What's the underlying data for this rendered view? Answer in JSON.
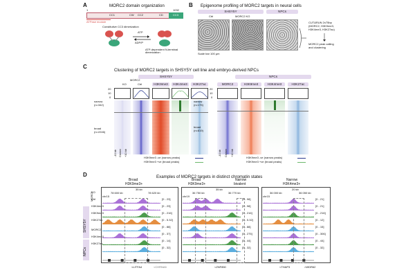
{
  "panels": {
    "A": {
      "letter": "A",
      "title": "MORC2 domain organization",
      "end_pos": "1032",
      "start_pos": "1",
      "domains": [
        "CC1",
        "CW",
        "CC2",
        "CD",
        "CC3"
      ],
      "atpase_label": "ATPase module",
      "constitutive_label": "Constitutive CC3 dimerization",
      "atp_label": "ATP",
      "adp_label": "ADP/P",
      "atp_dependent_label": "ATP-dependent N-terminal dimerization",
      "colors": {
        "atpase": "#d9534f",
        "domain_fill": "#f4e6e6",
        "cc3": "#3aa67a"
      }
    },
    "B": {
      "letter": "B",
      "title": "Epigenome profiling of MORC2 targets in neural cells",
      "group1": "SHSY5Y",
      "group2": "NPCs",
      "sub1": "Ctrl",
      "sub2": "MORC2 KO",
      "scale_bar": "Scale bar 100 μm",
      "cutrun": [
        "CUT&RUN 2x75bp",
        "(MORC2, H3K9me3,",
        "H3K4me3, H3K27ac)"
      ],
      "peak_calling": [
        "MORC2 peak calling",
        "and clustering"
      ]
    },
    "C": {
      "letter": "C",
      "title": "Clustering of MORC2 targets in SHSY5Y cell line and embryo-derived NPCs",
      "left_group": "SHSY5Y",
      "left_morc2": "MORC2",
      "left_cols": [
        "KO",
        "Ctrl",
        "H3K9me3",
        "H3K4me3",
        "H3K27ac"
      ],
      "right_group": "NPCs",
      "right_cols": [
        "MORC2",
        "H3K9me3",
        "H3K4me3",
        "H3K27ac"
      ],
      "left_narrow": [
        "narrow",
        "(n=342)"
      ],
      "left_broad": [
        "broad",
        "(n=2246)"
      ],
      "right_narrow": [
        "narrow",
        "(n=175)"
      ],
      "right_broad": [
        "broad",
        "(n=819)"
      ],
      "y_ticks_a": [
        "20",
        "10",
        "0"
      ],
      "y_ticks_b": [
        "150",
        "100",
        "50",
        "0"
      ],
      "x_ticks": [
        "-10 kb",
        "Center",
        "+10 kb"
      ],
      "legend_narrow": "H3K9me3 -ve (narrow peaks)",
      "legend_broad": "H3K9me3 +ve (broad peaks)",
      "colors": {
        "narrow": "#2b3a8f",
        "broad": "#6bb86b",
        "morc2": "#5b5bc8",
        "h3k9": "#e8643c",
        "h3k4": "#3a8a3a",
        "h3k27": "#3c7fc0"
      }
    },
    "D": {
      "letter": "D",
      "title": "Examples of MORC2 targets in distinct chromatin states",
      "loci": [
        {
          "header": [
            "Broad",
            "H3K9me3+"
          ],
          "chr": "chr15",
          "span": "35 kb",
          "coords": [
            "78 600 kb",
            "78 620 kb"
          ],
          "ranges": [
            "[0 - 23]",
            "[0 - 23]",
            "[0 - 216]",
            "[0 - 5.32]",
            "[0 - 88]",
            "[0 - 37]",
            "[0 - 14]",
            "[0 - 32]"
          ],
          "genes": [
            "<LITFA4",
            "<CHRNA5"
          ]
        },
        {
          "header": [
            "Broad",
            "H3K9me3+"
          ],
          "header2": [
            "Narrow",
            "bivalent"
          ],
          "chr": "chr19",
          "span": "35 kb",
          "coords": [
            "36 750 kb",
            "36 770 kb"
          ],
          "ranges": [
            "[0 - 98]",
            "[0 - 98]",
            "[0 - 216]",
            "[0 - 5.32]",
            "[0 - 88]",
            "[0 - 275]",
            "[0 - 44]",
            "[0 - 32]"
          ],
          "genes": [
            "<ZNF850"
          ]
        },
        {
          "header": [
            "Narrow",
            "H3K4me3+"
          ],
          "chr": "chr15",
          "span": "20 kb",
          "coords": [
            "36 000 kb",
            "36 050 kb"
          ],
          "ranges": [
            "[0 - 21]",
            "[0 - 21]",
            "[0 - 216]",
            "[0 - 12]",
            "[0 - 15]",
            "[0 - 306]",
            "[0 - 44]",
            "[0 - 32]"
          ],
          "genes": [
            "<THAP3",
            ">WDR62"
          ]
        }
      ],
      "track_labels": [
        "KO",
        "Ctrl",
        "H3K4me3",
        "H3K9me3",
        "H3K27ac",
        "MORC2",
        "H3K4me3",
        "H3K27ac"
      ],
      "side_group1": "SHSY5Y",
      "side_group2": "NPCs",
      "side_morc2": "MORC2",
      "colors": [
        "#9b59d0",
        "#9b59d0",
        "#2e8b2e",
        "#e07a1f",
        "#3fa0d8",
        "#9b59d0",
        "#2e8b2e",
        "#3fa0d8"
      ]
    }
  }
}
